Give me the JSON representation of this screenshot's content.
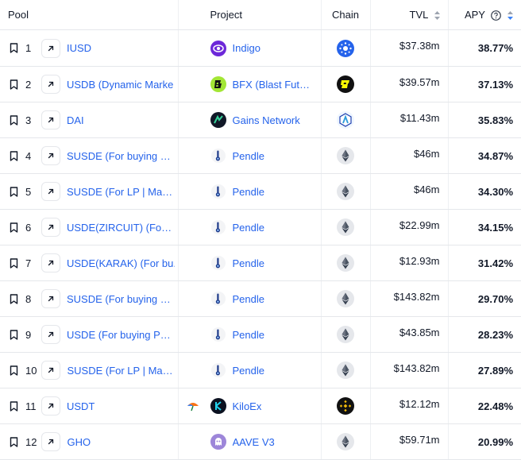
{
  "columns": {
    "pool": "Pool",
    "project": "Project",
    "chain": "Chain",
    "tvl": "TVL",
    "apy": "APY"
  },
  "rows": [
    {
      "rank": "1",
      "pool": "IUSD",
      "project": "Indigo",
      "project_logo": "indigo-logo",
      "chain_logo": "cardano-chain-icon",
      "tvl": "$37.38m",
      "apy": "38.77%"
    },
    {
      "rank": "2",
      "pool": "USDB (Dynamic Marke",
      "project": "BFX (Blast Fut…",
      "project_logo": "bfx-logo",
      "chain_logo": "blast-chain-icon",
      "tvl": "$39.57m",
      "apy": "37.13%"
    },
    {
      "rank": "3",
      "pool": "DAI",
      "project": "Gains Network",
      "project_logo": "gains-network-logo",
      "chain_logo": "arbitrum-chain-icon",
      "tvl": "$11.43m",
      "apy": "35.83%"
    },
    {
      "rank": "4",
      "pool": "SUSDE (For buying P…",
      "project": "Pendle",
      "project_logo": "pendle-logo",
      "chain_logo": "ethereum-chain-icon",
      "tvl": "$46m",
      "apy": "34.87%"
    },
    {
      "rank": "5",
      "pool": "SUSDE (For LP | Mat…",
      "project": "Pendle",
      "project_logo": "pendle-logo",
      "chain_logo": "ethereum-chain-icon",
      "tvl": "$46m",
      "apy": "34.30%"
    },
    {
      "rank": "6",
      "pool": "USDE(ZIRCUIT) (For …",
      "project": "Pendle",
      "project_logo": "pendle-logo",
      "chain_logo": "ethereum-chain-icon",
      "tvl": "$22.99m",
      "apy": "34.15%"
    },
    {
      "rank": "7",
      "pool": "USDE(KARAK) (For bu.",
      "project": "Pendle",
      "project_logo": "pendle-logo",
      "chain_logo": "ethereum-chain-icon",
      "tvl": "$12.93m",
      "apy": "31.42%"
    },
    {
      "rank": "8",
      "pool": "SUSDE (For buying P…",
      "project": "Pendle",
      "project_logo": "pendle-logo",
      "chain_logo": "ethereum-chain-icon",
      "tvl": "$143.82m",
      "apy": "29.70%"
    },
    {
      "rank": "9",
      "pool": "USDE (For buying PT…",
      "project": "Pendle",
      "project_logo": "pendle-logo",
      "chain_logo": "ethereum-chain-icon",
      "tvl": "$43.85m",
      "apy": "28.23%"
    },
    {
      "rank": "10",
      "pool": "SUSDE (For LP | Mat…",
      "project": "Pendle",
      "project_logo": "pendle-logo",
      "chain_logo": "ethereum-chain-icon",
      "tvl": "$143.82m",
      "apy": "27.89%"
    },
    {
      "rank": "11",
      "pool": "USDT",
      "project": "KiloEx",
      "project_logo": "kiloex-logo",
      "chain_logo": "bnb-chain-icon",
      "tvl": "$12.12m",
      "apy": "22.48%",
      "extra_icon": "umbrella-icon"
    },
    {
      "rank": "12",
      "pool": "GHO",
      "project": "AAVE V3",
      "project_logo": "aave-logo",
      "chain_logo": "ethereum-chain-icon",
      "tvl": "$59.71m",
      "apy": "20.99%"
    }
  ],
  "colors": {
    "link": "#2563eb",
    "sort_active": "#3b82f6",
    "border": "#e5e7eb"
  }
}
